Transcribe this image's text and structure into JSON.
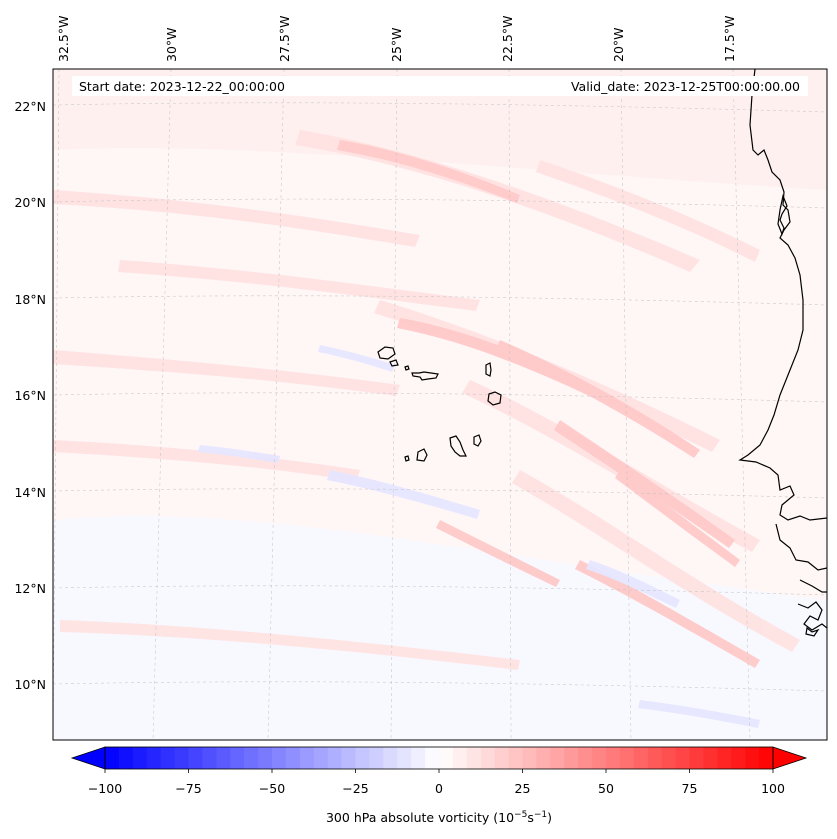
{
  "map": {
    "variable": "300 hPa absolute vorticity",
    "start_label": "Start date: 2023-12-22_00:00:00",
    "valid_label": "Valid_date: 2023-12-25T00:00:00.00",
    "lon_labels": [
      "32.5°W",
      "30°W",
      "27.5°W",
      "25°W",
      "22.5°W",
      "20°W",
      "17.5°W"
    ],
    "lat_labels": [
      "22°N",
      "20°N",
      "18°N",
      "16°N",
      "14°N",
      "12°N",
      "10°N"
    ],
    "colors": {
      "coastline": "#000000",
      "gridline": "#bfbfbf",
      "positive_max": "#ff0000",
      "negative_max": "#0000ff",
      "neutral": "#ffffff"
    }
  },
  "colorbar": {
    "label_prefix": "300 hPa absolute vorticity (10",
    "label_exp1": "−5",
    "label_mid": "s",
    "label_exp2": "−1",
    "label_suffix": ")",
    "tick_labels": [
      "−100",
      "−75",
      "−50",
      "−25",
      "0",
      "25",
      "50",
      "75",
      "100"
    ],
    "ticks": [
      -100,
      -75,
      -50,
      -25,
      0,
      25,
      50,
      75,
      100
    ],
    "vmin": -100,
    "vmax": 100,
    "levels": 48,
    "extend": "both",
    "cmap": "bwr"
  }
}
